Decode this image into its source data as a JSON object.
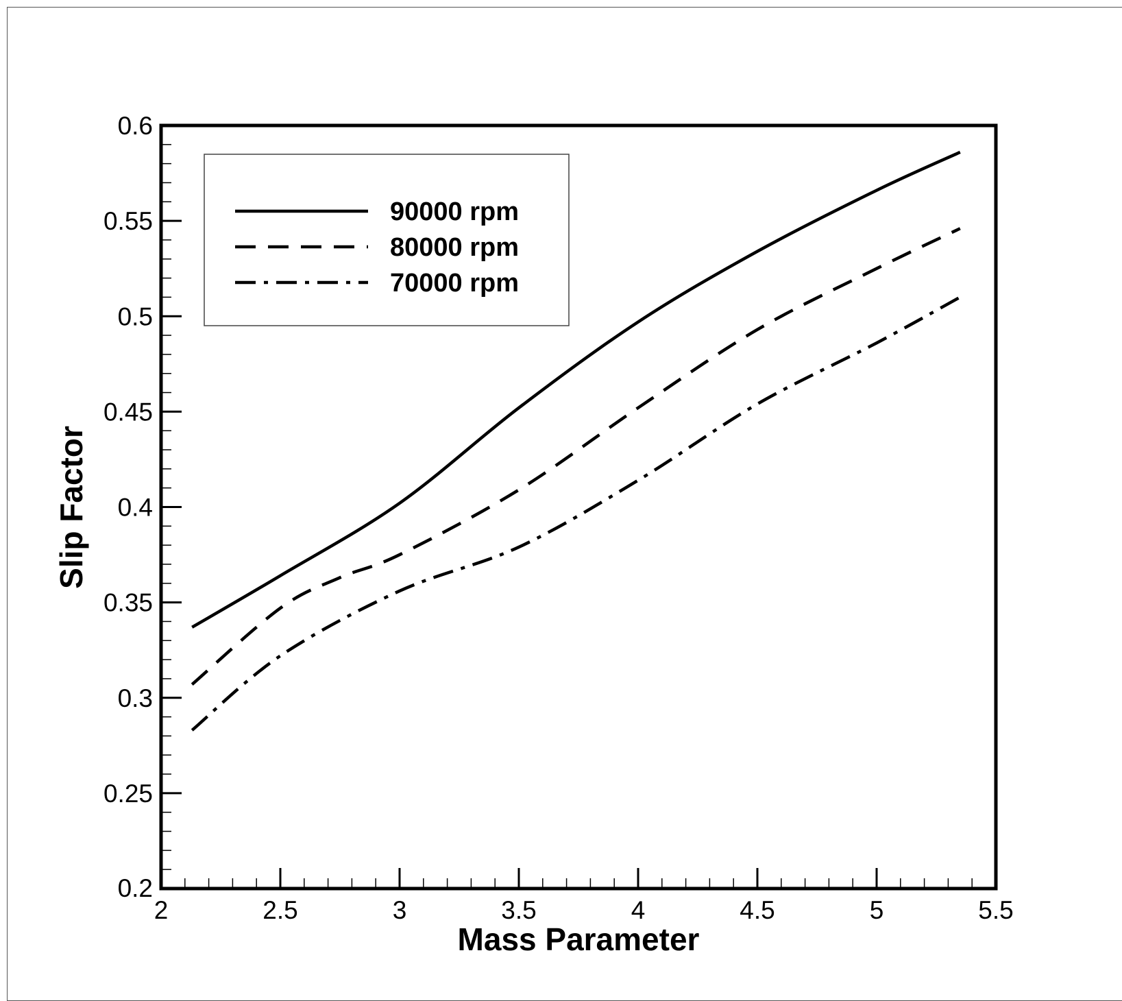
{
  "chart_data": {
    "type": "line",
    "title": "",
    "xlabel": "Mass Parameter",
    "ylabel": "Slip Factor",
    "xlim": [
      2,
      5.5
    ],
    "ylim": [
      0.2,
      0.6
    ],
    "xticks": [
      "2",
      "2.5",
      "3",
      "3.5",
      "4",
      "4.5",
      "5",
      "5.5"
    ],
    "yticks": [
      "0.2",
      "0.25",
      "0.3",
      "0.35",
      "0.4",
      "0.45",
      "0.5",
      "0.55",
      "0.6"
    ],
    "grid": false,
    "legend_position": "top-left",
    "series": [
      {
        "name": "90000 rpm",
        "style": "solid",
        "x": [
          2.13,
          2.5,
          3.0,
          3.5,
          4.0,
          4.5,
          5.0,
          5.35
        ],
        "y": [
          0.337,
          0.364,
          0.402,
          0.452,
          0.497,
          0.534,
          0.566,
          0.586
        ]
      },
      {
        "name": "80000 rpm",
        "style": "dashed",
        "x": [
          2.13,
          2.5,
          2.75,
          3.0,
          3.5,
          4.0,
          4.5,
          5.0,
          5.35
        ],
        "y": [
          0.307,
          0.347,
          0.363,
          0.375,
          0.409,
          0.452,
          0.493,
          0.525,
          0.546
        ]
      },
      {
        "name": "70000 rpm",
        "style": "dashdot",
        "x": [
          2.13,
          2.5,
          3.0,
          3.5,
          4.0,
          4.5,
          5.0,
          5.35
        ],
        "y": [
          0.283,
          0.322,
          0.356,
          0.379,
          0.414,
          0.454,
          0.486,
          0.51
        ]
      }
    ]
  }
}
